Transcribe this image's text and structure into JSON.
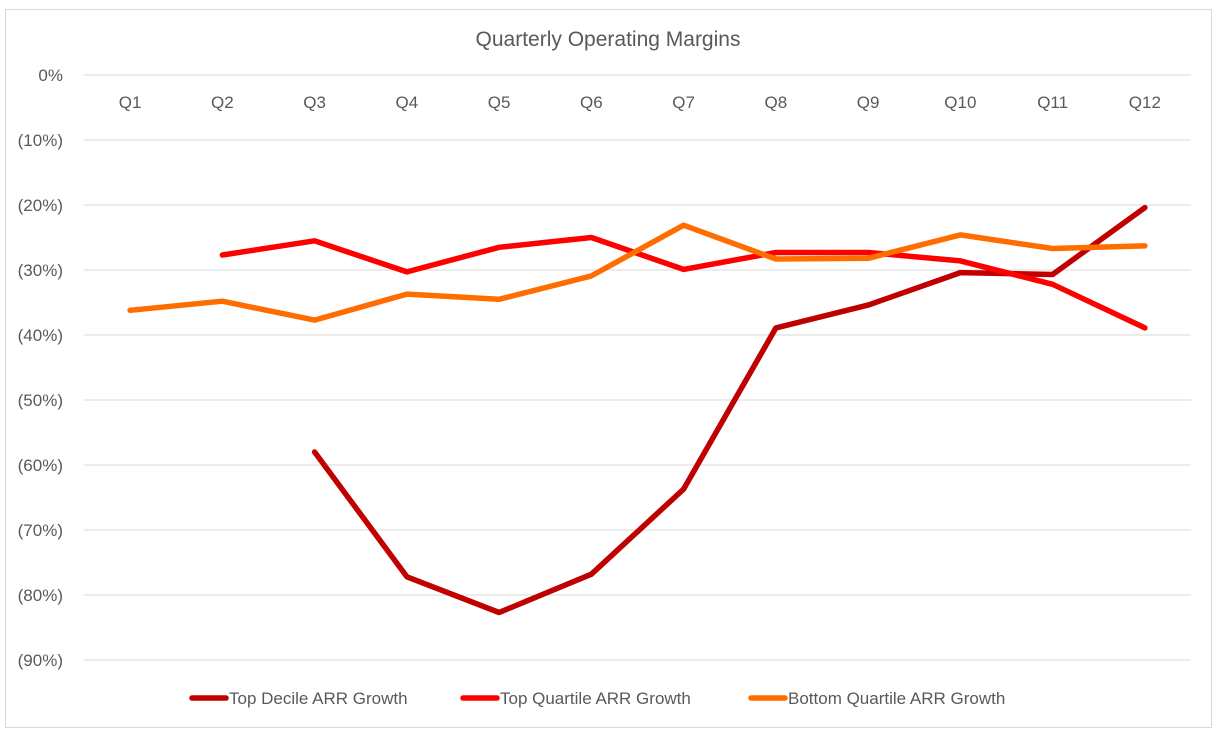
{
  "chart_data": {
    "type": "line",
    "title": "Quarterly Operating Margins",
    "xlabel": "",
    "ylabel": "",
    "categories": [
      "Q1",
      "Q2",
      "Q3",
      "Q4",
      "Q5",
      "Q6",
      "Q7",
      "Q8",
      "Q9",
      "Q10",
      "Q11",
      "Q12"
    ],
    "y_ticks": [
      {
        "value": 0,
        "label": "0%"
      },
      {
        "value": -10,
        "label": "(10%)"
      },
      {
        "value": -20,
        "label": "(20%)"
      },
      {
        "value": -30,
        "label": "(30%)"
      },
      {
        "value": -40,
        "label": "(40%)"
      },
      {
        "value": -50,
        "label": "(50%)"
      },
      {
        "value": -60,
        "label": "(60%)"
      },
      {
        "value": -70,
        "label": "(70%)"
      },
      {
        "value": -80,
        "label": "(80%)"
      },
      {
        "value": -90,
        "label": "(90%)"
      }
    ],
    "ylim": [
      -90,
      0
    ],
    "grid": true,
    "x_axis_labels_position": "top",
    "legend_position": "bottom",
    "series": [
      {
        "name": "Top Decile ARR Growth",
        "color": "#C00000",
        "values": [
          null,
          null,
          -58.0,
          -77.2,
          -82.7,
          -76.8,
          -63.7,
          -38.9,
          -35.4,
          -30.4,
          -30.7,
          -20.4
        ]
      },
      {
        "name": "Top Quartile ARR Growth",
        "color": "#FF0000",
        "values": [
          null,
          -27.7,
          -25.5,
          -30.3,
          -26.5,
          -25.0,
          -29.9,
          -27.3,
          -27.3,
          -28.6,
          -32.2,
          -38.9
        ]
      },
      {
        "name": "Bottom Quartile ARR Growth",
        "color": "#FF6D00",
        "values": [
          -36.2,
          -34.8,
          -37.7,
          -33.7,
          -34.5,
          -30.9,
          -23.1,
          -28.3,
          -28.2,
          -24.6,
          -26.7,
          -26.3
        ]
      }
    ]
  }
}
